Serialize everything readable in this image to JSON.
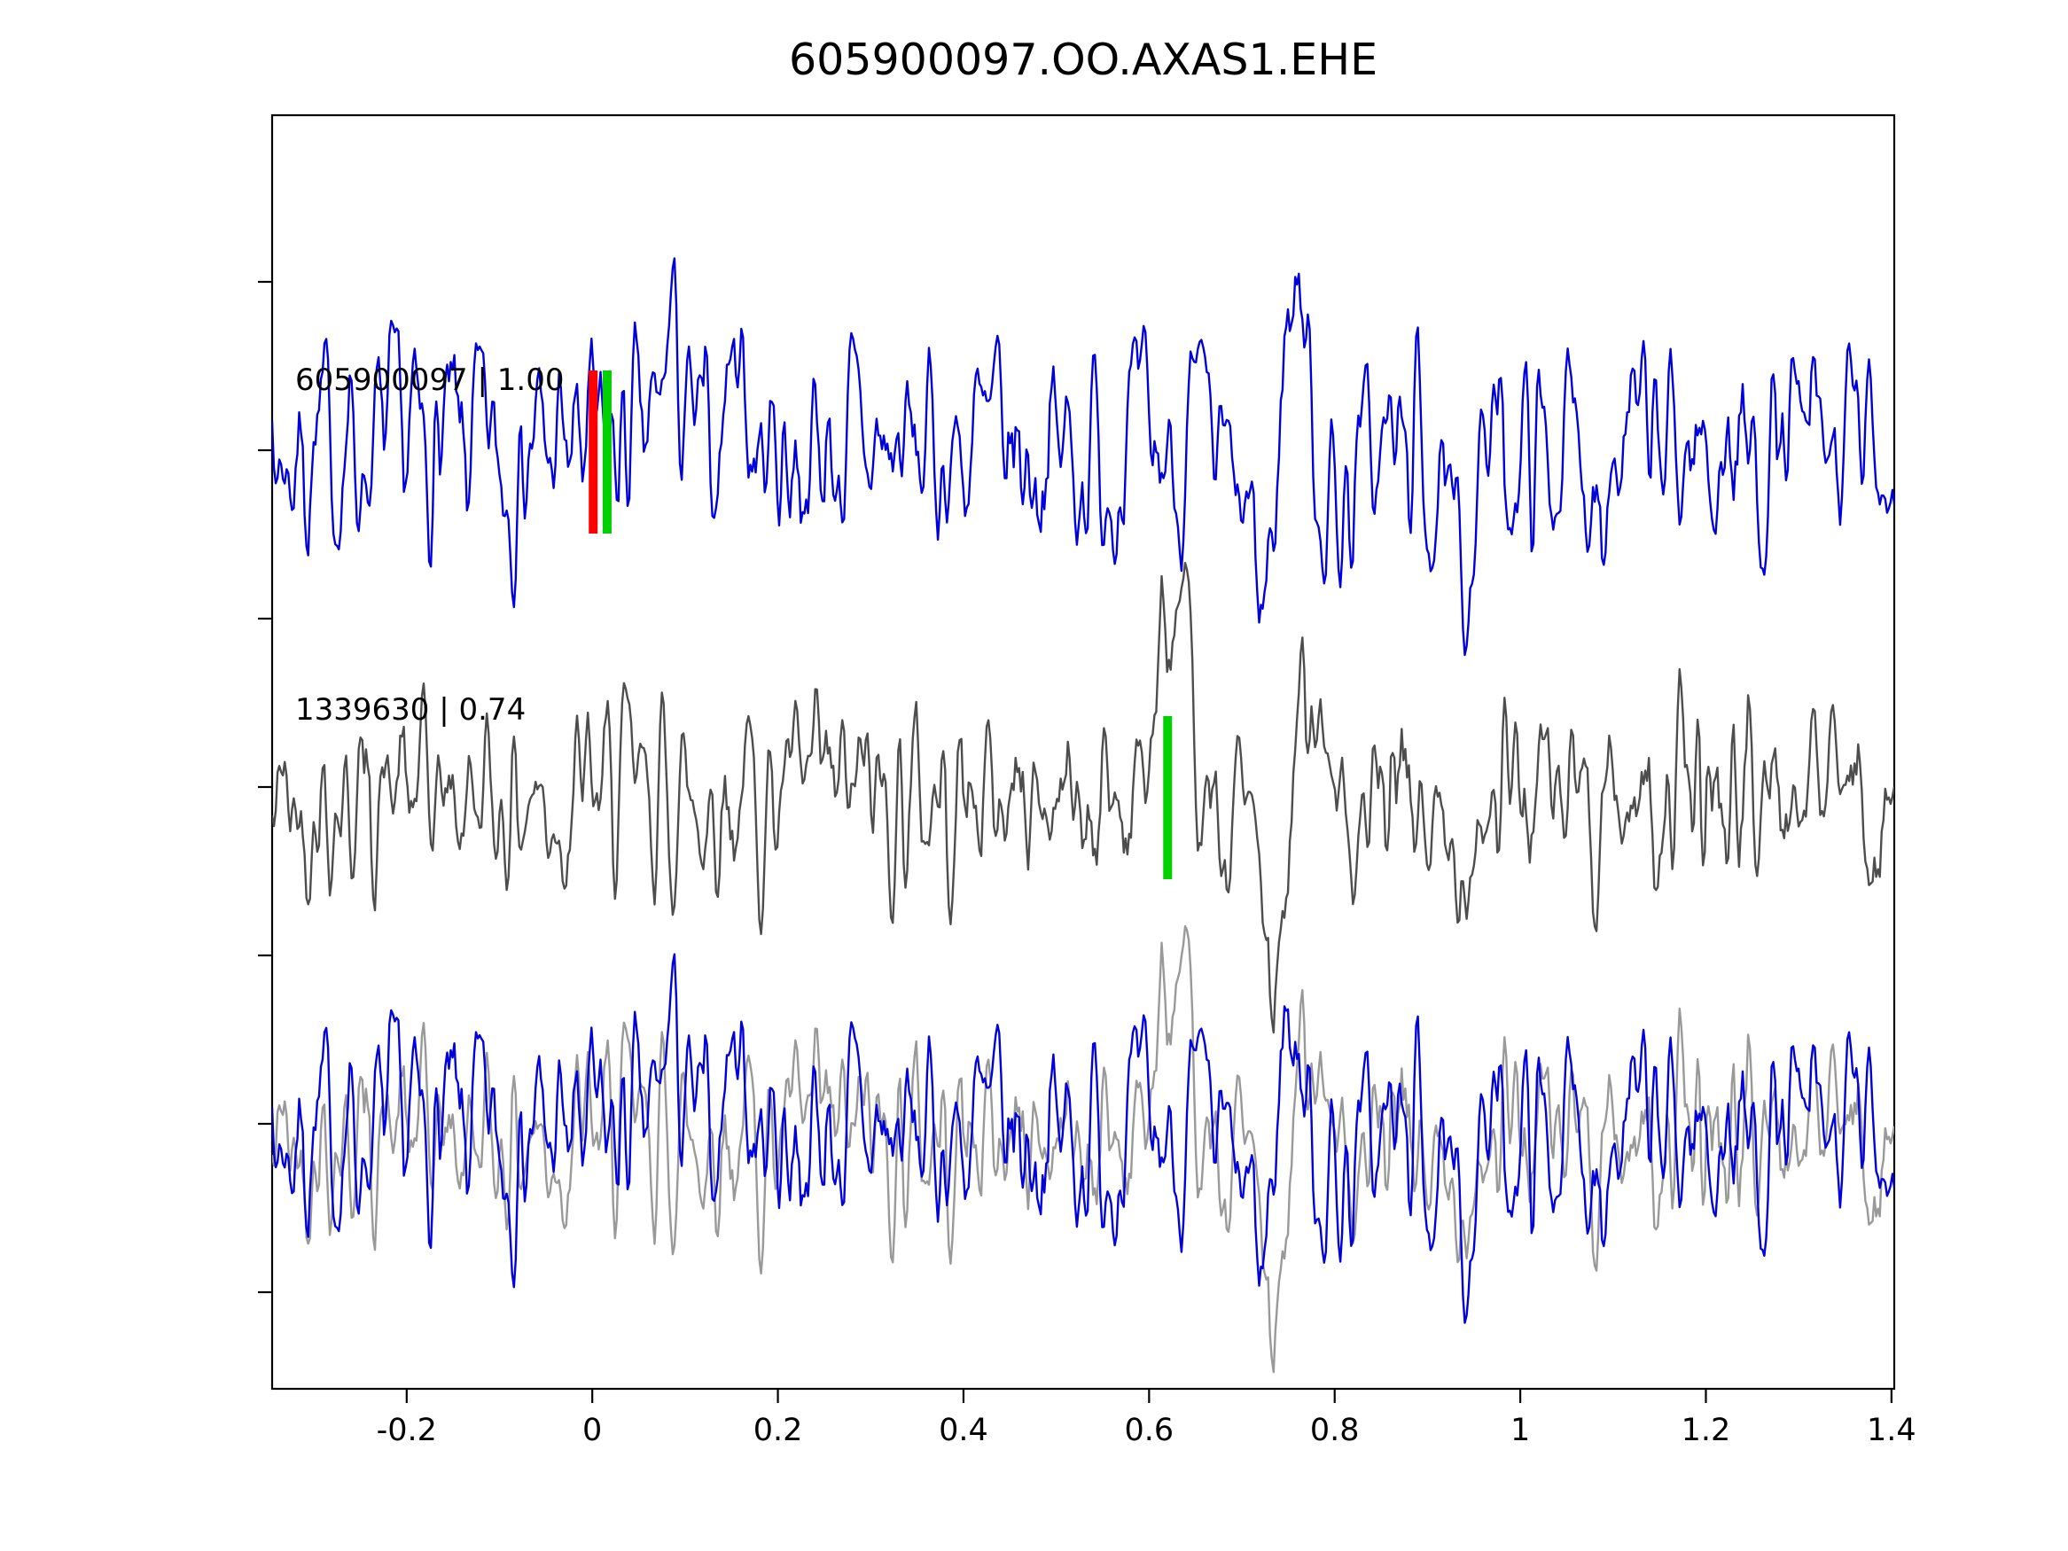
{
  "figure": {
    "background_color": "#ffffff"
  },
  "chart_data": {
    "type": "line",
    "title": "605900097.OO.AXAS1.EHE",
    "xlabel": "",
    "ylabel": "",
    "xlim": [
      -0.345,
      1.403
    ],
    "x_ticks": [
      -0.2,
      0,
      0.2,
      0.4,
      0.6,
      0.8,
      1,
      1.2,
      1.4
    ],
    "x_tick_labels": [
      "-0.2",
      "0",
      "0.2",
      "0.4",
      "0.6",
      "0.8",
      "1",
      "1.2",
      "1.4"
    ],
    "grid": false,
    "legend": "none",
    "colors": {
      "detection_trace": "#0000dd",
      "template_trace": "#4d4d4d",
      "template_overlay_trace": "#999999",
      "pick_marker_red": "#ff0000",
      "pick_marker_green": "#00cf00",
      "axis": "#000000"
    },
    "rows": [
      {
        "label": "605900097 | 1.00",
        "trace_id": "605900097",
        "correlation": 1.0,
        "series": [
          {
            "name": "detection-waveform",
            "color": "#0000dd",
            "seed": 7,
            "noise_amp": 60,
            "events": [
              {
                "x": 0.085,
                "amp": 140,
                "w": 0.012
              },
              {
                "x": 0.155,
                "amp": 150,
                "w": 0.012
              },
              {
                "x": 0.7,
                "amp": -80,
                "w": 0.02
              },
              {
                "x": 0.725,
                "amp": -150,
                "w": 0.015
              },
              {
                "x": 0.757,
                "amp": 220,
                "w": 0.016
              },
              {
                "x": 0.8,
                "amp": -70,
                "w": 0.02
              },
              {
                "x": 0.93,
                "amp": -140,
                "w": 0.02
              }
            ]
          }
        ],
        "markers": [
          {
            "x": 0.001,
            "color": "#ff0000"
          },
          {
            "x": 0.016,
            "color": "#00cf00"
          }
        ]
      },
      {
        "label": "1339630 | 0.74",
        "trace_id": "1339630",
        "correlation": 0.74,
        "series": [
          {
            "name": "template-waveform",
            "color": "#4d4d4d",
            "seed": 42,
            "noise_amp": 55,
            "events": [
              {
                "x": 0.625,
                "amp": 190,
                "w": 0.022
              },
              {
                "x": 0.66,
                "amp": -60,
                "w": 0.02
              },
              {
                "x": 0.735,
                "amp": -230,
                "w": 0.018
              },
              {
                "x": 0.775,
                "amp": 170,
                "w": 0.018
              },
              {
                "x": 0.83,
                "amp": -80,
                "w": 0.02
              },
              {
                "x": 0.92,
                "amp": -90,
                "w": 0.02
              }
            ]
          }
        ],
        "markers": [
          {
            "x": 0.62,
            "color": "#00cf00"
          }
        ]
      },
      {
        "label": "",
        "series": [
          {
            "name": "template-aligned-overlay",
            "color": "#999999",
            "seed": 42,
            "noise_amp": 55,
            "events": [
              {
                "x": 0.625,
                "amp": 150,
                "w": 0.022
              },
              {
                "x": 0.66,
                "amp": -60,
                "w": 0.02
              },
              {
                "x": 0.735,
                "amp": -230,
                "w": 0.018
              },
              {
                "x": 0.775,
                "amp": 150,
                "w": 0.018
              },
              {
                "x": 0.83,
                "amp": -80,
                "w": 0.02
              },
              {
                "x": 0.92,
                "amp": -90,
                "w": 0.02
              }
            ]
          },
          {
            "name": "detection-overlay",
            "color": "#0000dd",
            "seed": 7,
            "noise_amp": 58,
            "events": [
              {
                "x": 0.085,
                "amp": 130,
                "w": 0.012
              },
              {
                "x": 0.155,
                "amp": 140,
                "w": 0.012
              },
              {
                "x": 0.7,
                "amp": -70,
                "w": 0.02
              },
              {
                "x": 0.725,
                "amp": -130,
                "w": 0.015
              },
              {
                "x": 0.75,
                "amp": 160,
                "w": 0.016
              },
              {
                "x": 0.8,
                "amp": -60,
                "w": 0.02
              },
              {
                "x": 0.93,
                "amp": -120,
                "w": 0.02
              }
            ]
          }
        ],
        "markers": []
      }
    ]
  }
}
